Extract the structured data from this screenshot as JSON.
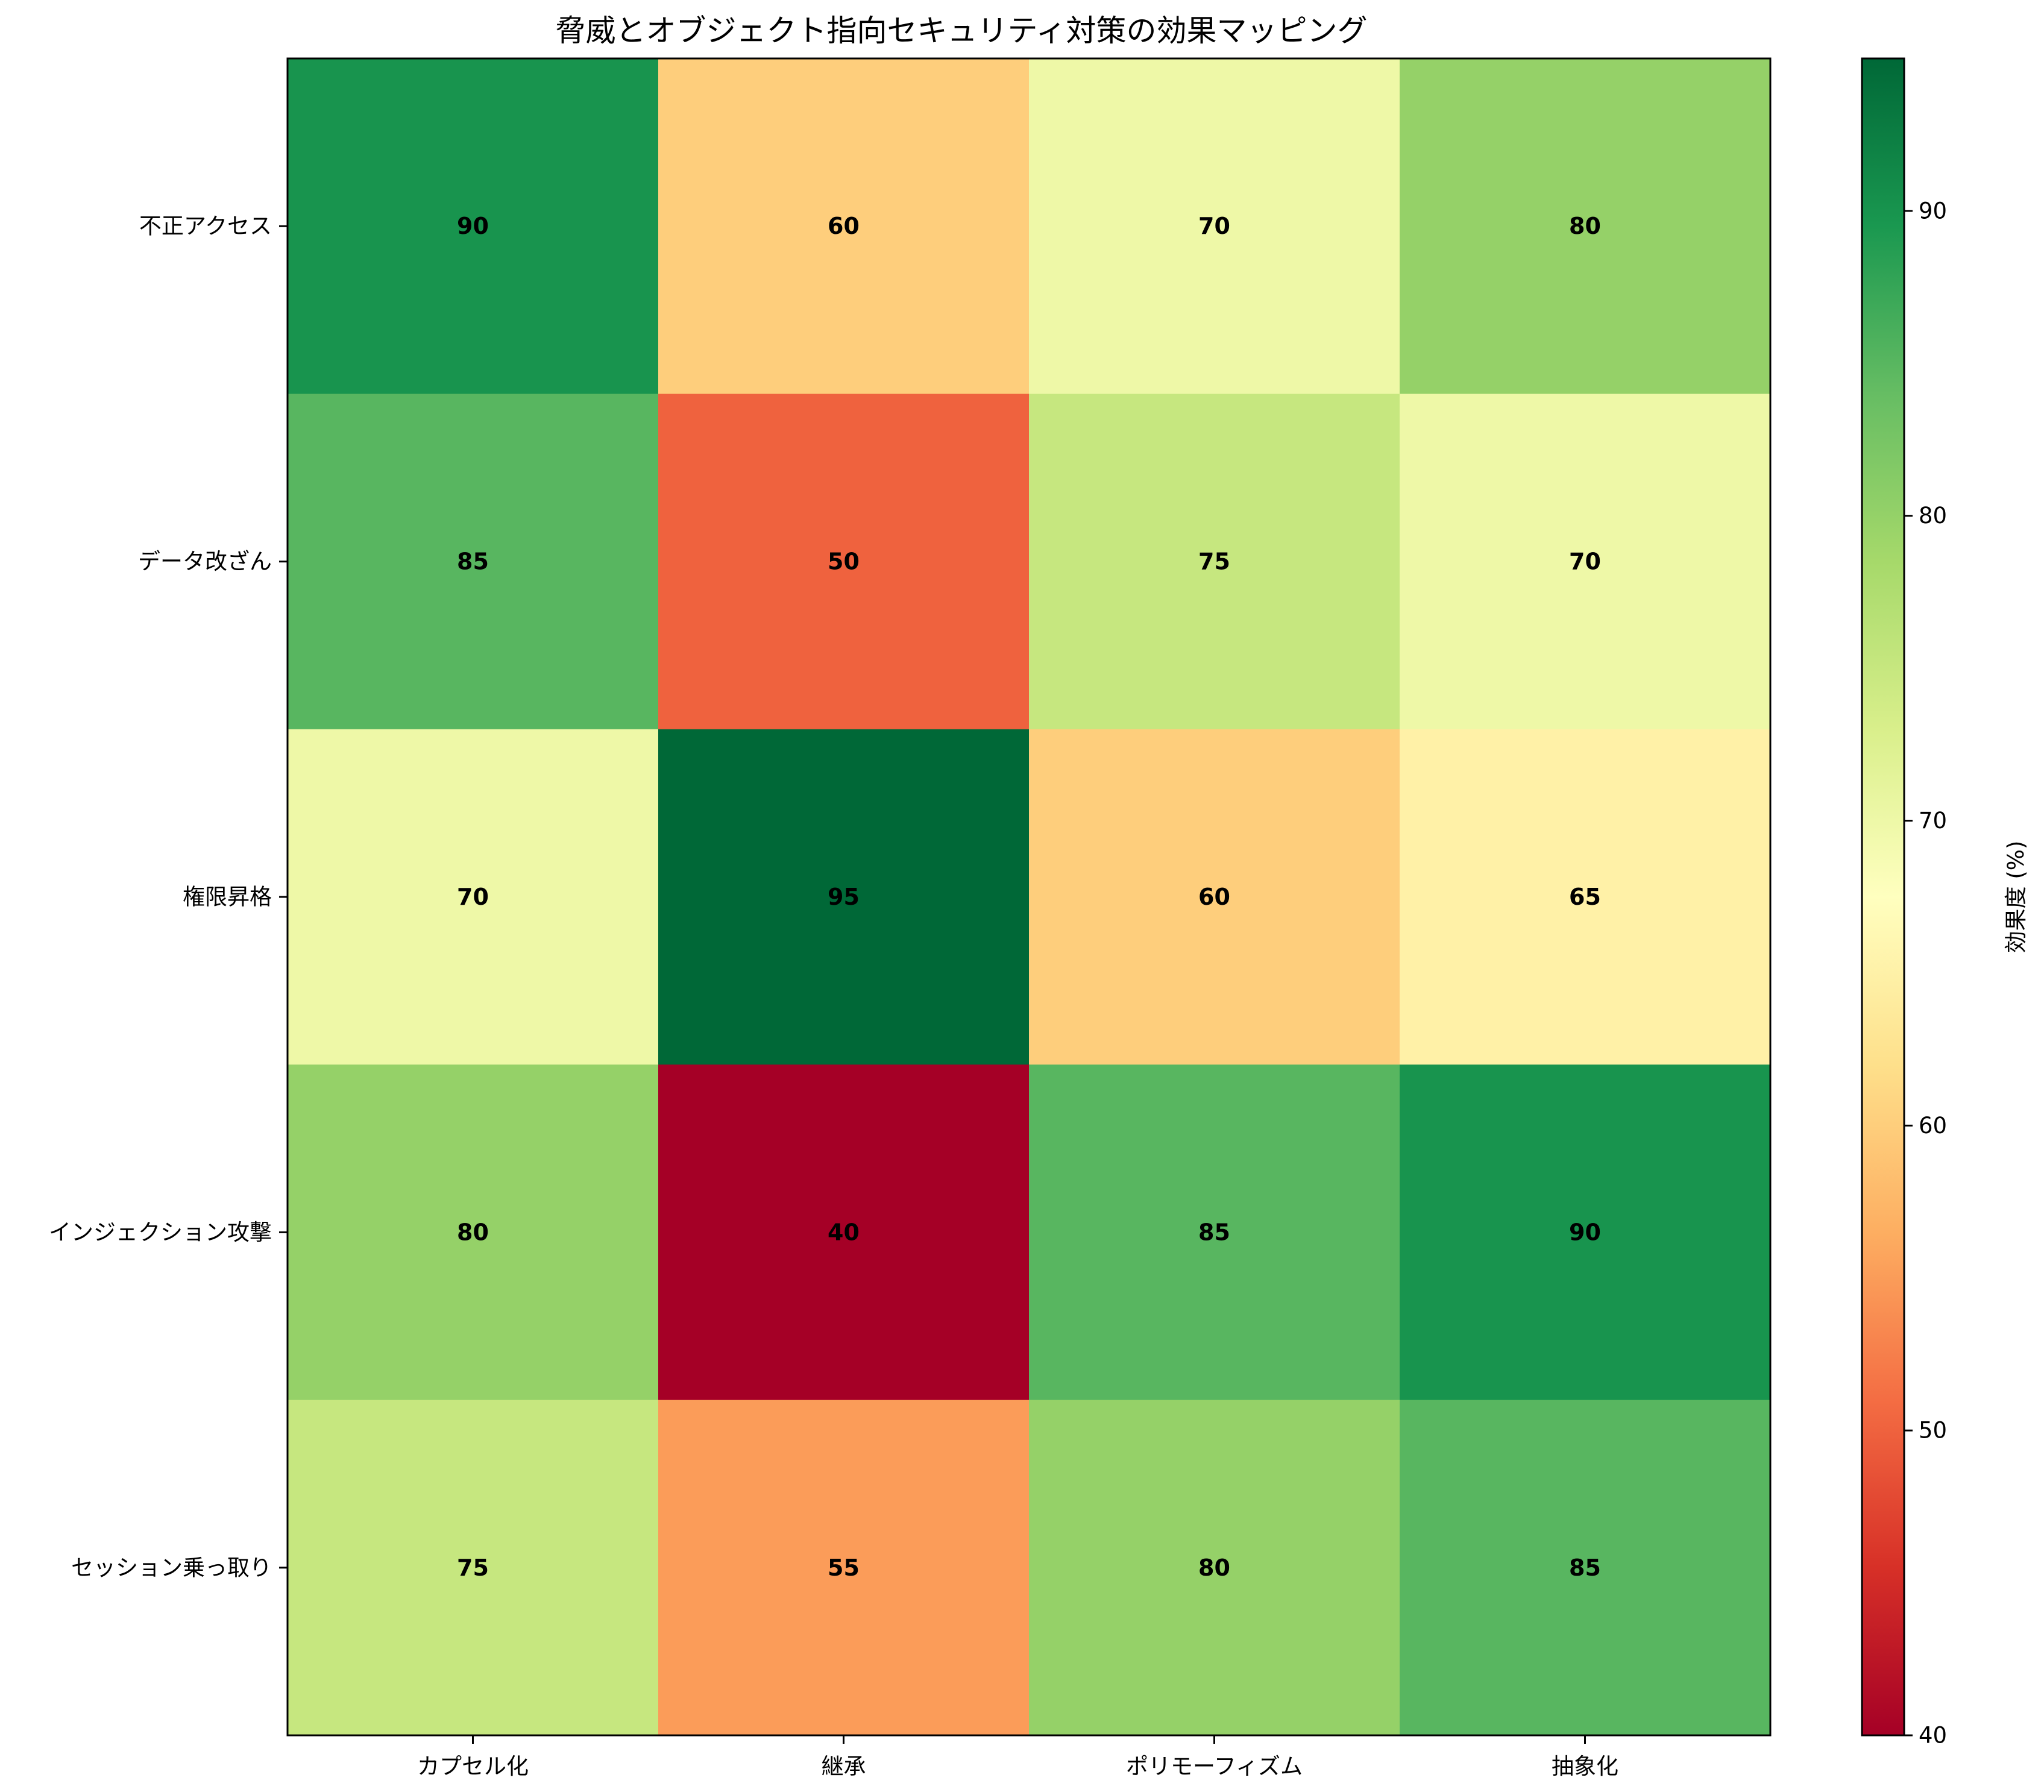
{
  "chart_data": {
    "type": "heatmap",
    "title": "脅威とオブジェクト指向セキュリティ対策の効果マッピング",
    "columns": [
      "カプセル化",
      "継承",
      "ポリモーフィズム",
      "抽象化"
    ],
    "rows": [
      "不正アクセス",
      "データ改ざん",
      "権限昇格",
      "インジェクション攻撃",
      "セッション乗っ取り"
    ],
    "values": [
      [
        90,
        60,
        70,
        80
      ],
      [
        85,
        50,
        75,
        70
      ],
      [
        70,
        95,
        60,
        65
      ],
      [
        80,
        40,
        85,
        90
      ],
      [
        75,
        55,
        80,
        85
      ]
    ],
    "colorbar": {
      "label": "効果度 (%)",
      "min": 40,
      "max": 95,
      "ticks": [
        "40",
        "50",
        "60",
        "70",
        "80",
        "90"
      ],
      "colormap": "RdYlGn"
    }
  }
}
